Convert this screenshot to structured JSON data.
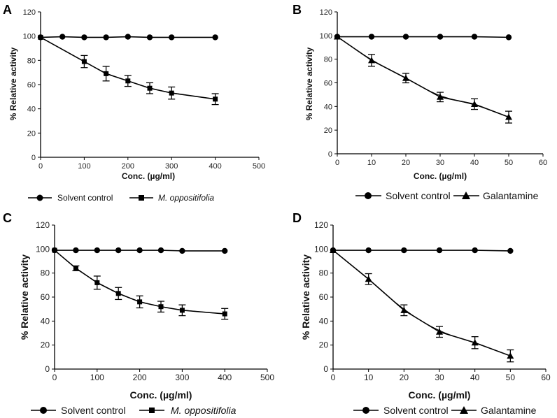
{
  "chart_data": [
    {
      "panel": "A",
      "type": "line",
      "xlabel": "Conc. (µg/ml)",
      "ylabel": "% Relative activity",
      "xlim": [
        0,
        500
      ],
      "ylim": [
        0,
        120
      ],
      "xticks": [
        0,
        100,
        200,
        300,
        400,
        500
      ],
      "yticks": [
        0,
        20,
        40,
        60,
        80,
        100,
        120
      ],
      "series": [
        {
          "name": "Solvent control",
          "marker": "circle",
          "italic": false,
          "x": [
            0,
            50,
            100,
            150,
            200,
            250,
            300,
            400
          ],
          "y": [
            99,
            99.5,
            99,
            99,
            99.5,
            99,
            99,
            99
          ],
          "err": [
            0,
            0,
            0,
            0,
            0,
            0,
            0,
            0
          ]
        },
        {
          "name": "M. oppositifolia",
          "marker": "square",
          "italic": true,
          "x": [
            0,
            100,
            150,
            200,
            250,
            300,
            400
          ],
          "y": [
            99,
            79,
            69,
            63,
            57,
            53,
            48
          ],
          "err": [
            0,
            5,
            6,
            4.5,
            4.5,
            5,
            4.5
          ]
        }
      ]
    },
    {
      "panel": "B",
      "type": "line",
      "xlabel": "Conc. (µg/ml)",
      "ylabel": "% Relative activity",
      "xlim": [
        0,
        60
      ],
      "ylim": [
        0,
        120
      ],
      "xticks": [
        0,
        10,
        20,
        30,
        40,
        50,
        60
      ],
      "yticks": [
        0,
        20,
        40,
        60,
        80,
        100,
        120
      ],
      "series": [
        {
          "name": "Solvent control",
          "marker": "circle",
          "italic": false,
          "x": [
            0,
            10,
            20,
            30,
            40,
            50
          ],
          "y": [
            99,
            99,
            99,
            99,
            99,
            98.5
          ],
          "err": [
            0,
            0,
            0,
            0,
            0,
            0
          ]
        },
        {
          "name": "Galantamine",
          "marker": "triangle",
          "italic": false,
          "x": [
            0,
            10,
            20,
            30,
            40,
            50
          ],
          "y": [
            99,
            79,
            64,
            48,
            42,
            31
          ],
          "err": [
            0,
            5,
            4,
            4,
            4.5,
            5
          ]
        }
      ]
    },
    {
      "panel": "C",
      "type": "line",
      "xlabel": "Conc. (µg/ml)",
      "ylabel": "% Relative activity",
      "xlim": [
        0,
        500
      ],
      "ylim": [
        0,
        120
      ],
      "xticks": [
        0,
        100,
        200,
        300,
        400,
        500
      ],
      "yticks": [
        0,
        20,
        40,
        60,
        80,
        100,
        120
      ],
      "series": [
        {
          "name": "Solvent control",
          "marker": "circle",
          "italic": false,
          "x": [
            0,
            50,
            100,
            150,
            200,
            250,
            300,
            400
          ],
          "y": [
            99,
            99,
            99,
            99,
            99,
            99,
            98.5,
            98.5
          ],
          "err": [
            0,
            0,
            0,
            0,
            0,
            0,
            0,
            0
          ]
        },
        {
          "name": "M. oppositifolia",
          "marker": "square",
          "italic": true,
          "x": [
            0,
            50,
            100,
            150,
            200,
            250,
            300,
            400
          ],
          "y": [
            99,
            84,
            72,
            63,
            56,
            52,
            49,
            46
          ],
          "err": [
            0,
            2,
            5.5,
            5,
            5,
            4.5,
            4.5,
            4.5
          ]
        }
      ]
    },
    {
      "panel": "D",
      "type": "line",
      "xlabel": "Conc. (µg/ml)",
      "ylabel": "% Relative activity",
      "xlim": [
        0,
        60
      ],
      "ylim": [
        0,
        120
      ],
      "xticks": [
        0,
        10,
        20,
        30,
        40,
        50,
        60
      ],
      "yticks": [
        0,
        20,
        40,
        60,
        80,
        100,
        120
      ],
      "series": [
        {
          "name": "Solvent control",
          "marker": "circle",
          "italic": false,
          "x": [
            0,
            10,
            20,
            30,
            40,
            50
          ],
          "y": [
            99,
            99,
            99,
            99,
            99,
            98.5
          ],
          "err": [
            0,
            0,
            0,
            0,
            0,
            0
          ]
        },
        {
          "name": "Galantamine",
          "marker": "triangle",
          "italic": false,
          "x": [
            0,
            10,
            20,
            30,
            40,
            50
          ],
          "y": [
            99,
            75,
            49,
            31,
            22,
            11
          ],
          "err": [
            0,
            4.5,
            4.5,
            4.5,
            5,
            5
          ]
        }
      ]
    }
  ],
  "colors": {
    "line": "#000000",
    "background": "#ffffff"
  }
}
